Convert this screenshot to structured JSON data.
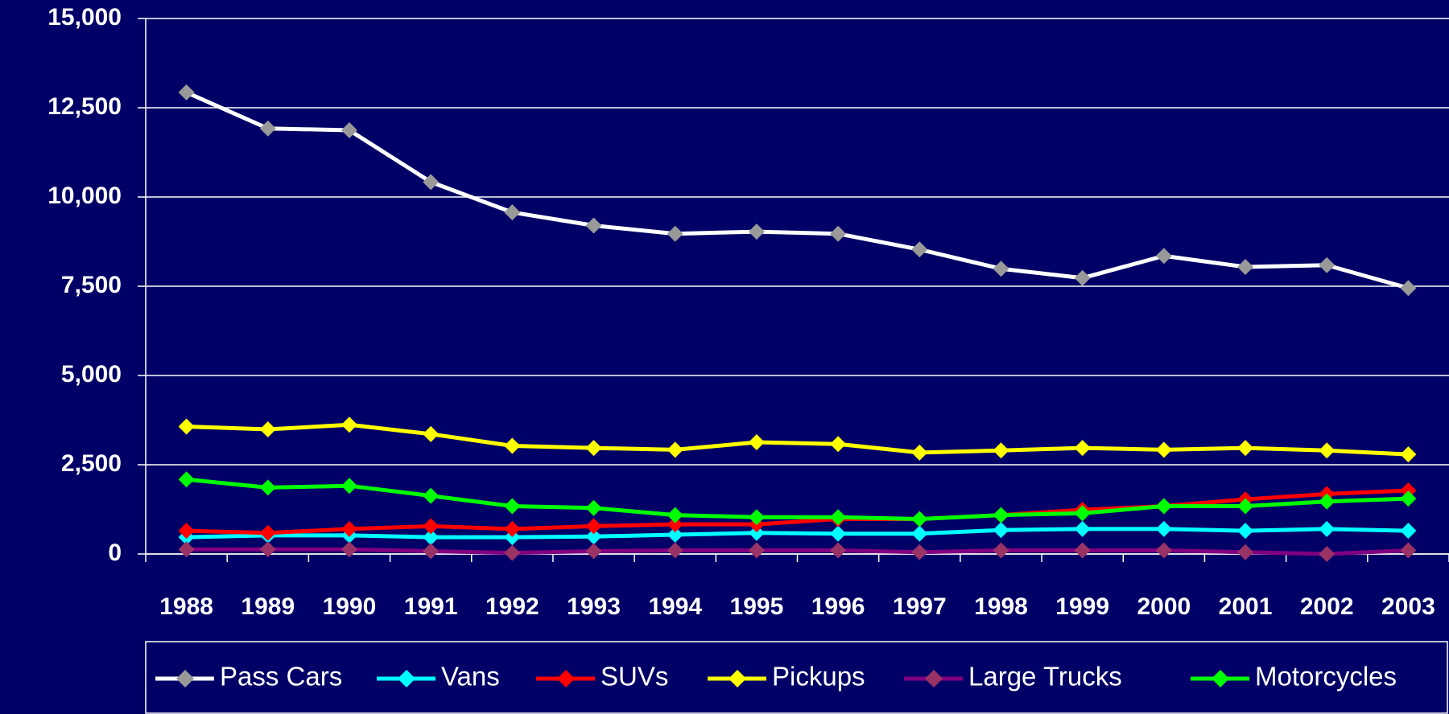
{
  "chart_data": {
    "type": "line",
    "x": [
      "1988",
      "1989",
      "1990",
      "1991",
      "1992",
      "1993",
      "1994",
      "1995",
      "1996",
      "1997",
      "1998",
      "1999",
      "2000",
      "2001",
      "2002",
      "2003"
    ],
    "series": [
      {
        "name": "Pass Cars",
        "color": "#ffffff",
        "marker_color": "#999999",
        "values": [
          12930,
          11920,
          11870,
          10420,
          9570,
          9200,
          8970,
          9030,
          8970,
          8530,
          7990,
          7730,
          8350,
          8040,
          8090,
          7450
        ]
      },
      {
        "name": "Vans",
        "color": "#00ffff",
        "marker_color": "#00ffff",
        "values": [
          470,
          520,
          520,
          470,
          470,
          490,
          540,
          590,
          570,
          570,
          670,
          700,
          700,
          650,
          700,
          650
        ]
      },
      {
        "name": "SUVs",
        "color": "#ff0000",
        "marker_color": "#ff0000",
        "values": [
          650,
          590,
          700,
          780,
          700,
          780,
          830,
          830,
          980,
          980,
          1090,
          1240,
          1340,
          1530,
          1680,
          1780
        ]
      },
      {
        "name": "Pickups",
        "color": "#ffff00",
        "marker_color": "#ffff00",
        "values": [
          3570,
          3490,
          3620,
          3360,
          3030,
          2970,
          2920,
          3130,
          3080,
          2840,
          2900,
          2970,
          2920,
          2970,
          2900,
          2790
        ]
      },
      {
        "name": "Large Trucks",
        "color": "#800080",
        "marker_color": "#993366",
        "values": [
          130,
          130,
          130,
          80,
          30,
          80,
          100,
          100,
          100,
          50,
          100,
          100,
          100,
          50,
          0,
          100
        ]
      },
      {
        "name": "Motorcycles",
        "color": "#00ff00",
        "marker_color": "#00ff00",
        "values": [
          2090,
          1860,
          1910,
          1630,
          1340,
          1290,
          1090,
          1030,
          1030,
          980,
          1090,
          1140,
          1340,
          1340,
          1470,
          1550
        ]
      }
    ],
    "ylim": [
      0,
      15000
    ],
    "yticks": [
      0,
      {
        "value": 2500,
        "label": "2,500"
      },
      {
        "value": 5000,
        "label": "5,000"
      },
      {
        "value": 7500,
        "label": "7,500"
      },
      {
        "value": 10000,
        "label": "10,000"
      },
      {
        "value": 12500,
        "label": "12,500"
      },
      {
        "value": 15000,
        "label": "15,000"
      }
    ],
    "grid": true,
    "legend": "bottom",
    "background": "#000066"
  }
}
